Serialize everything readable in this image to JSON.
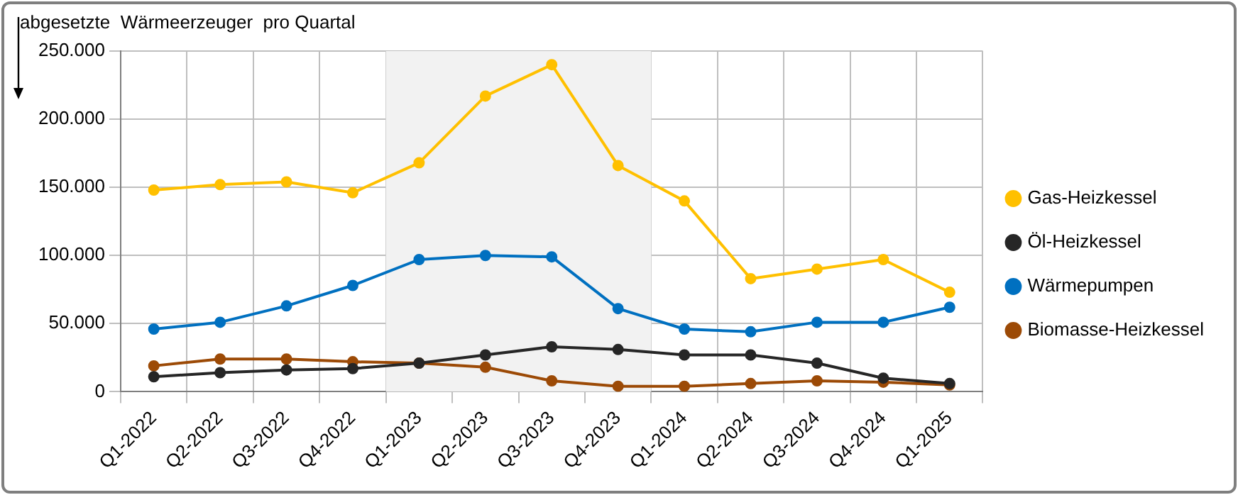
{
  "chart_data": {
    "type": "line",
    "ylabel": "abgesetzte  Wärmeerzeuger  pro Quartal",
    "categories": [
      "Q1-2022",
      "Q2-2022",
      "Q3-2022",
      "Q4-2022",
      "Q1-2023",
      "Q2-2023",
      "Q3-2023",
      "Q4-2023",
      "Q1-2024",
      "Q2-2024",
      "Q3-2024",
      "Q4-2024",
      "Q1-2025"
    ],
    "series": [
      {
        "name": "Gas-Heizkessel",
        "color": "#ffc000",
        "values": [
          148000,
          152000,
          154000,
          146000,
          168000,
          217000,
          240000,
          166000,
          140000,
          83000,
          90000,
          97000,
          73000
        ]
      },
      {
        "name": "Öl-Heizkessel",
        "color": "#262626",
        "values": [
          11000,
          14000,
          16000,
          17000,
          21000,
          27000,
          33000,
          31000,
          27000,
          27000,
          21000,
          10000,
          6000
        ]
      },
      {
        "name": "Wärmepumpen",
        "color": "#0070c0",
        "values": [
          46000,
          51000,
          63000,
          78000,
          97000,
          100000,
          99000,
          61000,
          46000,
          44000,
          51000,
          51000,
          62000
        ]
      },
      {
        "name": "Biomasse-Heizkessel",
        "color": "#9c4a06",
        "values": [
          19000,
          24000,
          24000,
          22000,
          21000,
          18000,
          8000,
          4000,
          4000,
          6000,
          8000,
          7000,
          5000
        ]
      }
    ],
    "ylim": [
      0,
      250000
    ],
    "yticks": [
      0,
      {
        "value": 50000,
        "label": "50.000"
      },
      {
        "value": 100000,
        "label": "100.000"
      },
      {
        "value": 150000,
        "label": "150.000"
      },
      {
        "value": 200000,
        "label": "200.000"
      },
      {
        "value": 250000,
        "label": "250.000"
      }
    ],
    "bands": [
      {
        "axis": "x",
        "from": "Q1-2023",
        "to": "Q4-2023",
        "color": "#f2f2f2"
      }
    ],
    "grid": true,
    "legend": "right",
    "marker": "circle",
    "line_style": "solid"
  }
}
